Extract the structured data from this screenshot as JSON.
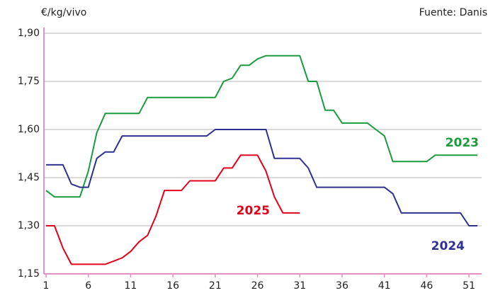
{
  "chart_data": {
    "type": "line",
    "y_axis_label": "€/kg/vivo",
    "source": "Fuente: Danis",
    "x": [
      1,
      2,
      3,
      4,
      5,
      6,
      7,
      8,
      9,
      10,
      11,
      12,
      13,
      14,
      15,
      16,
      17,
      18,
      19,
      20,
      21,
      22,
      23,
      24,
      25,
      26,
      27,
      28,
      29,
      30,
      31,
      32,
      33,
      34,
      35,
      36,
      37,
      38,
      39,
      40,
      41,
      42,
      43,
      44,
      45,
      46,
      47,
      48,
      49,
      50,
      51,
      52
    ],
    "xlim": [
      0.75,
      52.5
    ],
    "xticks": [
      1,
      6,
      11,
      16,
      21,
      26,
      31,
      36,
      41,
      46,
      51
    ],
    "ylim": [
      1.15,
      1.9
    ],
    "yticks": [
      {
        "value": 1.15,
        "label": "1,15"
      },
      {
        "value": 1.3,
        "label": "1,30"
      },
      {
        "value": 1.45,
        "label": "1,45"
      },
      {
        "value": 1.6,
        "label": "1,60"
      },
      {
        "value": 1.75,
        "label": "1,75"
      },
      {
        "value": 1.9,
        "label": "1,90"
      }
    ],
    "grid": true,
    "series": [
      {
        "name": "2023",
        "color": "#1b9a3e",
        "values": [
          1.41,
          1.39,
          1.39,
          1.39,
          1.39,
          1.47,
          1.59,
          1.65,
          1.65,
          1.65,
          1.65,
          1.65,
          1.7,
          1.7,
          1.7,
          1.7,
          1.7,
          1.7,
          1.7,
          1.7,
          1.7,
          1.75,
          1.76,
          1.8,
          1.8,
          1.82,
          1.83,
          1.83,
          1.83,
          1.83,
          1.83,
          1.75,
          1.75,
          1.66,
          1.66,
          1.62,
          1.62,
          1.62,
          1.62,
          1.6,
          1.58,
          1.5,
          1.5,
          1.5,
          1.5,
          1.5,
          1.52,
          1.52,
          1.52,
          1.52,
          1.52,
          1.52
        ]
      },
      {
        "name": "2024",
        "color": "#2e3192",
        "values": [
          1.49,
          1.49,
          1.49,
          1.43,
          1.42,
          1.42,
          1.51,
          1.53,
          1.53,
          1.58,
          1.58,
          1.58,
          1.58,
          1.58,
          1.58,
          1.58,
          1.58,
          1.58,
          1.58,
          1.58,
          1.6,
          1.6,
          1.6,
          1.6,
          1.6,
          1.6,
          1.6,
          1.51,
          1.51,
          1.51,
          1.51,
          1.48,
          1.42,
          1.42,
          1.42,
          1.42,
          1.42,
          1.42,
          1.42,
          1.42,
          1.42,
          1.4,
          1.34,
          1.34,
          1.34,
          1.34,
          1.34,
          1.34,
          1.34,
          1.34,
          1.3,
          1.3
        ]
      },
      {
        "name": "2025",
        "color": "#e2001a",
        "values": [
          1.3,
          1.3,
          1.23,
          1.18,
          1.18,
          1.18,
          1.18,
          1.18,
          1.19,
          1.2,
          1.22,
          1.25,
          1.27,
          1.33,
          1.41,
          1.41,
          1.41,
          1.44,
          1.44,
          1.44,
          1.44,
          1.48,
          1.48,
          1.52,
          1.52,
          1.52,
          1.47,
          1.39,
          1.34,
          1.34,
          1.34,
          null,
          null,
          null,
          null,
          null,
          null,
          null,
          null,
          null,
          null,
          null,
          null,
          null,
          null,
          null,
          null,
          null,
          null,
          null,
          null,
          null
        ]
      }
    ]
  }
}
